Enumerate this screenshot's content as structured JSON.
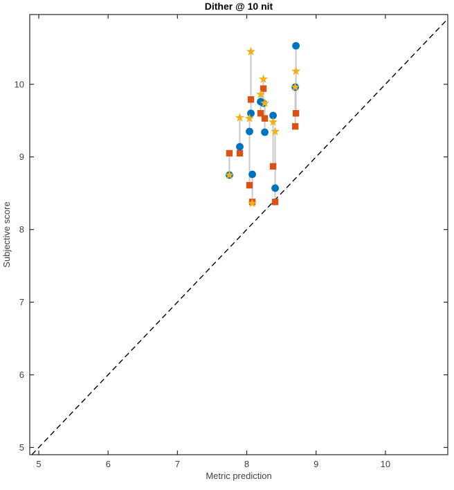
{
  "title": "Dither @ 10 nit",
  "chart_data": {
    "type": "scatter",
    "title": "Dither @ 10 nit",
    "xlabel": "Metric prediction",
    "ylabel": "Subjective score",
    "xlim": [
      4.87,
      10.9
    ],
    "ylim": [
      4.9,
      10.96
    ],
    "xticks": [
      5,
      6,
      7,
      8,
      9,
      10
    ],
    "yticks": [
      5,
      6,
      7,
      8,
      9,
      10
    ],
    "grid": false,
    "legend": "none",
    "identity_line": {
      "type": "dashed",
      "equation": "y = x",
      "color": "#000000"
    },
    "connector_color": "#C9C9C9",
    "series_styles": [
      {
        "name": "circle-series",
        "marker": "circle",
        "color": "#0072BD"
      },
      {
        "name": "square-series",
        "marker": "square",
        "color": "#D95319"
      },
      {
        "name": "star-series",
        "marker": "star",
        "color": "#EDB120"
      }
    ],
    "groups": [
      {
        "x": 7.75,
        "circle": 8.75,
        "square": 9.05,
        "star": 8.75
      },
      {
        "x": 7.9,
        "circle": 9.14,
        "square": 9.05,
        "star": 9.54
      },
      {
        "x": 8.04,
        "circle": 9.35,
        "square": 8.61,
        "star": 9.53
      },
      {
        "x": 8.06,
        "circle": 9.6,
        "square": 9.79,
        "star": 10.45
      },
      {
        "x": 8.08,
        "circle": 8.76,
        "square": 8.38,
        "star": 8.36
      },
      {
        "x": 8.2,
        "circle": 9.76,
        "square": 9.6,
        "star": 9.86
      },
      {
        "x": 8.24,
        "circle": 9.74,
        "square": 9.94,
        "star": 10.07
      },
      {
        "x": 8.26,
        "circle": 9.34,
        "square": 9.53,
        "star": 9.74
      },
      {
        "x": 8.38,
        "circle": 9.57,
        "square": 8.87,
        "star": 9.48
      },
      {
        "x": 8.41,
        "circle": 8.57,
        "square": 8.38,
        "star": 9.35
      },
      {
        "x": 8.7,
        "circle": 9.96,
        "square": 9.42,
        "star": 9.96
      },
      {
        "x": 8.71,
        "circle": 10.53,
        "square": 9.6,
        "star": 10.18
      }
    ]
  }
}
